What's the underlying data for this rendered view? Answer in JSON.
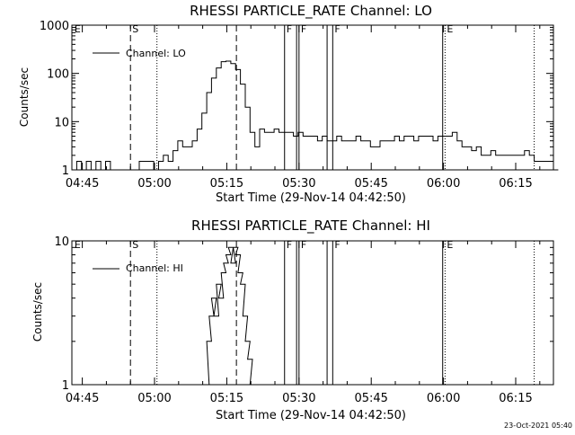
{
  "footer": {
    "date_stamp": "23-Oct-2021 05:40"
  },
  "chart_data": [
    {
      "type": "line",
      "title": "RHESSI PARTICLE_RATE Channel: LO",
      "xlabel": "Start Time (29-Nov-14 04:42:50)",
      "ylabel": "Counts/sec",
      "y_scale": "log",
      "ylim": [
        1,
        1000
      ],
      "xlim": [
        "04:42:50",
        "06:22:50"
      ],
      "y_ticks": [
        "1",
        "10",
        "100",
        "1000"
      ],
      "x_ticks": [
        "04:45",
        "05:00",
        "05:15",
        "05:30",
        "05:45",
        "06:00",
        "06:15"
      ],
      "legend": {
        "placement": "top-left",
        "entries": [
          "Channel: LO"
        ]
      },
      "grid": false,
      "markers": [
        {
          "time": "04:43:00",
          "style": "none",
          "label": "E"
        },
        {
          "time": "04:55:00",
          "style": "dashed",
          "label": "S"
        },
        {
          "time": "05:00:30",
          "style": "dotted",
          "label": ""
        },
        {
          "time": "05:17:00",
          "style": "dashed",
          "label": ""
        },
        {
          "time": "05:27:00",
          "style": "solid",
          "label": "F"
        },
        {
          "time": "05:29:30",
          "style": "solid",
          "label": ""
        },
        {
          "time": "05:30:00",
          "style": "solid",
          "label": "F"
        },
        {
          "time": "05:35:50",
          "style": "solid",
          "label": ""
        },
        {
          "time": "05:37:00",
          "style": "solid",
          "label": "F"
        },
        {
          "time": "05:59:50",
          "style": "solid",
          "label": ""
        },
        {
          "time": "06:00:20",
          "style": "dotted",
          "label": "E"
        },
        {
          "time": "06:18:50",
          "style": "dotted",
          "label": ""
        }
      ],
      "series": [
        {
          "name": "Channel: LO",
          "x": [
            0,
            1,
            2,
            3,
            4,
            5,
            6,
            7,
            8,
            9,
            10,
            11,
            12,
            13,
            14,
            15,
            16,
            17,
            18,
            19,
            20,
            21,
            22,
            23,
            24,
            25,
            26,
            27,
            28,
            29,
            30,
            31,
            32,
            33,
            34,
            35,
            36,
            37,
            38,
            39,
            40,
            41,
            42,
            43,
            44,
            45,
            46,
            47,
            48,
            49,
            50,
            51,
            52,
            53,
            54,
            55,
            56,
            57,
            58,
            59,
            60,
            61,
            62,
            63,
            64,
            65,
            66,
            67,
            68,
            69,
            70,
            71,
            72,
            73,
            74,
            75,
            76,
            77,
            78,
            79,
            80,
            81,
            82,
            83,
            84,
            85,
            86,
            87,
            88,
            89,
            90,
            91,
            92,
            93,
            94,
            95,
            96,
            97,
            98,
            99,
            100
          ],
          "y": [
            1,
            1.5,
            1,
            1.5,
            1,
            1.5,
            1,
            1.5,
            1,
            1,
            1,
            1,
            1,
            1,
            1.5,
            1.5,
            1.5,
            1,
            1.5,
            2,
            1.5,
            2.5,
            4,
            3,
            3,
            4,
            7,
            15,
            40,
            80,
            130,
            175,
            180,
            160,
            120,
            60,
            20,
            6,
            3,
            7,
            6,
            6,
            7,
            6,
            6,
            6,
            5,
            6,
            5,
            5,
            5,
            4,
            5,
            4,
            4,
            5,
            4,
            4,
            4,
            5,
            4,
            4,
            3,
            3,
            4,
            4,
            4,
            5,
            4,
            5,
            5,
            4,
            5,
            5,
            5,
            4,
            5,
            5,
            5,
            6,
            4,
            3,
            3,
            2.5,
            3,
            2,
            2,
            2.5,
            2,
            2,
            2,
            2,
            2,
            2,
            2.5,
            2,
            1.5,
            1.5,
            1.5,
            1.5,
            1
          ]
        }
      ]
    },
    {
      "type": "line",
      "title": "RHESSI PARTICLE_RATE Channel: HI",
      "xlabel": "Start Time (29-Nov-14 04:42:50)",
      "ylabel": "Counts/sec",
      "y_scale": "log",
      "ylim": [
        1,
        10
      ],
      "xlim": [
        "04:42:50",
        "06:22:50"
      ],
      "y_ticks": [
        "1",
        "10"
      ],
      "x_ticks": [
        "04:45",
        "05:00",
        "05:15",
        "05:30",
        "05:45",
        "06:00",
        "06:15"
      ],
      "legend": {
        "placement": "top-left",
        "entries": [
          "Channel: HI"
        ]
      },
      "grid": false,
      "markers": [
        {
          "time": "04:43:00",
          "style": "none",
          "label": "E"
        },
        {
          "time": "04:55:00",
          "style": "dashed",
          "label": "S"
        },
        {
          "time": "05:00:30",
          "style": "dotted",
          "label": ""
        },
        {
          "time": "05:17:00",
          "style": "dashed",
          "label": ""
        },
        {
          "time": "05:27:00",
          "style": "solid",
          "label": "F"
        },
        {
          "time": "05:29:30",
          "style": "solid",
          "label": ""
        },
        {
          "time": "05:30:00",
          "style": "solid",
          "label": "F"
        },
        {
          "time": "05:35:50",
          "style": "solid",
          "label": ""
        },
        {
          "time": "05:37:00",
          "style": "solid",
          "label": "F"
        },
        {
          "time": "05:59:50",
          "style": "solid",
          "label": ""
        },
        {
          "time": "06:00:20",
          "style": "dotted",
          "label": "E"
        },
        {
          "time": "06:18:50",
          "style": "dotted",
          "label": ""
        }
      ],
      "series": [
        {
          "name": "Channel: HI",
          "x": [
            27.5,
            28,
            28.5,
            29,
            29.5,
            30,
            30.5,
            31,
            31.5,
            32,
            32.5,
            33,
            33.5,
            34,
            34.5,
            35,
            35.5,
            36,
            36.5,
            37
          ],
          "y": [
            1,
            2,
            3,
            4,
            3,
            5,
            4,
            6,
            7,
            8,
            9,
            7,
            9,
            8,
            6,
            5,
            3,
            2,
            1.5,
            1
          ]
        }
      ]
    }
  ]
}
